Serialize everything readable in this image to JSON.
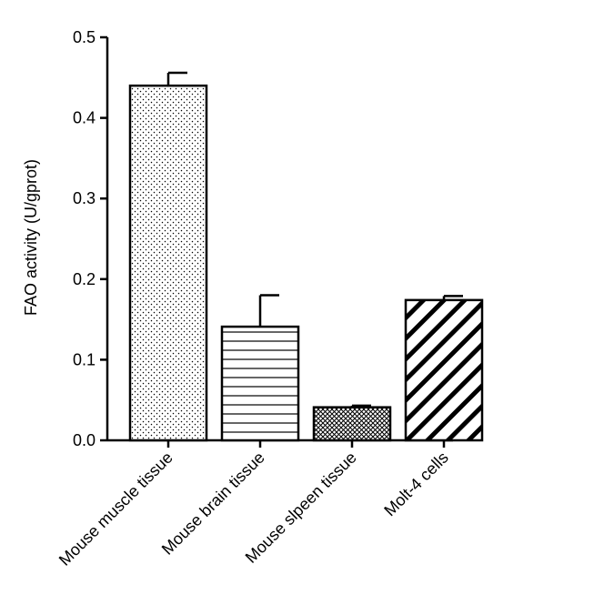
{
  "chart_data": {
    "type": "bar",
    "title": "",
    "xlabel": "",
    "ylabel": "FAO activity (U/gprot)",
    "ylim": [
      0,
      0.5
    ],
    "yticks": [
      0.0,
      0.1,
      0.2,
      0.3,
      0.4,
      0.5
    ],
    "ytick_labels": [
      "0.0",
      "0.1",
      "0.2",
      "0.3",
      "0.4",
      "0.5"
    ],
    "categories": [
      "Mouse muscle tissue",
      "Mouse brain tissue",
      "Mouse slpeen tissue",
      "Molt-4 cells"
    ],
    "values": [
      0.44,
      0.141,
      0.041,
      0.174
    ],
    "errors": [
      0.016,
      0.039,
      0.002,
      0.005
    ],
    "patterns": [
      "dots",
      "horizontal-lines",
      "crosshatch",
      "diagonal-stripes"
    ],
    "grid": false
  }
}
